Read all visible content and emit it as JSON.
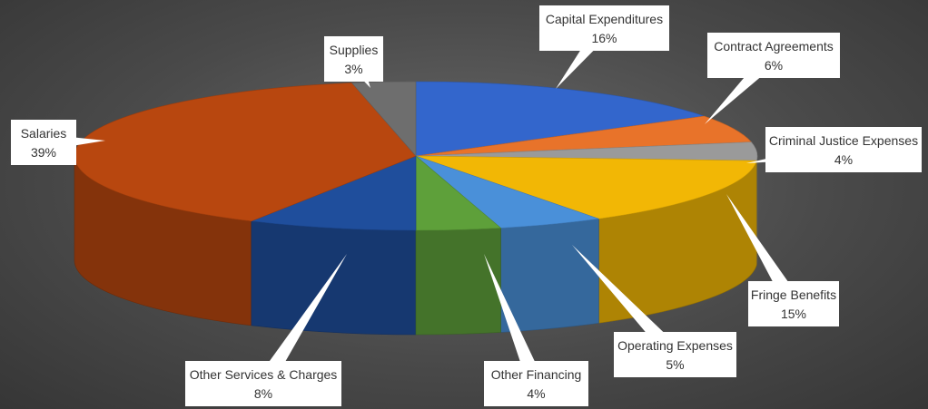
{
  "chart_data": {
    "type": "pie",
    "title": "",
    "legend": "none",
    "categories": [
      "Capital Expenditures",
      "Contract Agreements",
      "Criminal Justice Expenses",
      "Fringe Benefits",
      "Operating Expenses",
      "Other Financing",
      "Other Services & Charges",
      "Salaries",
      "Supplies"
    ],
    "values": [
      16,
      6,
      4,
      15,
      5,
      4,
      8,
      39,
      3
    ],
    "value_labels": [
      "16%",
      "6%",
      "4%",
      "15%",
      "5%",
      "4%",
      "8%",
      "39%",
      "3%"
    ],
    "colors": [
      "#3366cc",
      "#e8732a",
      "#9a9a9a",
      "#f2b705",
      "#4a90d9",
      "#5ea03a",
      "#1f4e9c",
      "#b8470f",
      "#6e6e6e"
    ]
  }
}
